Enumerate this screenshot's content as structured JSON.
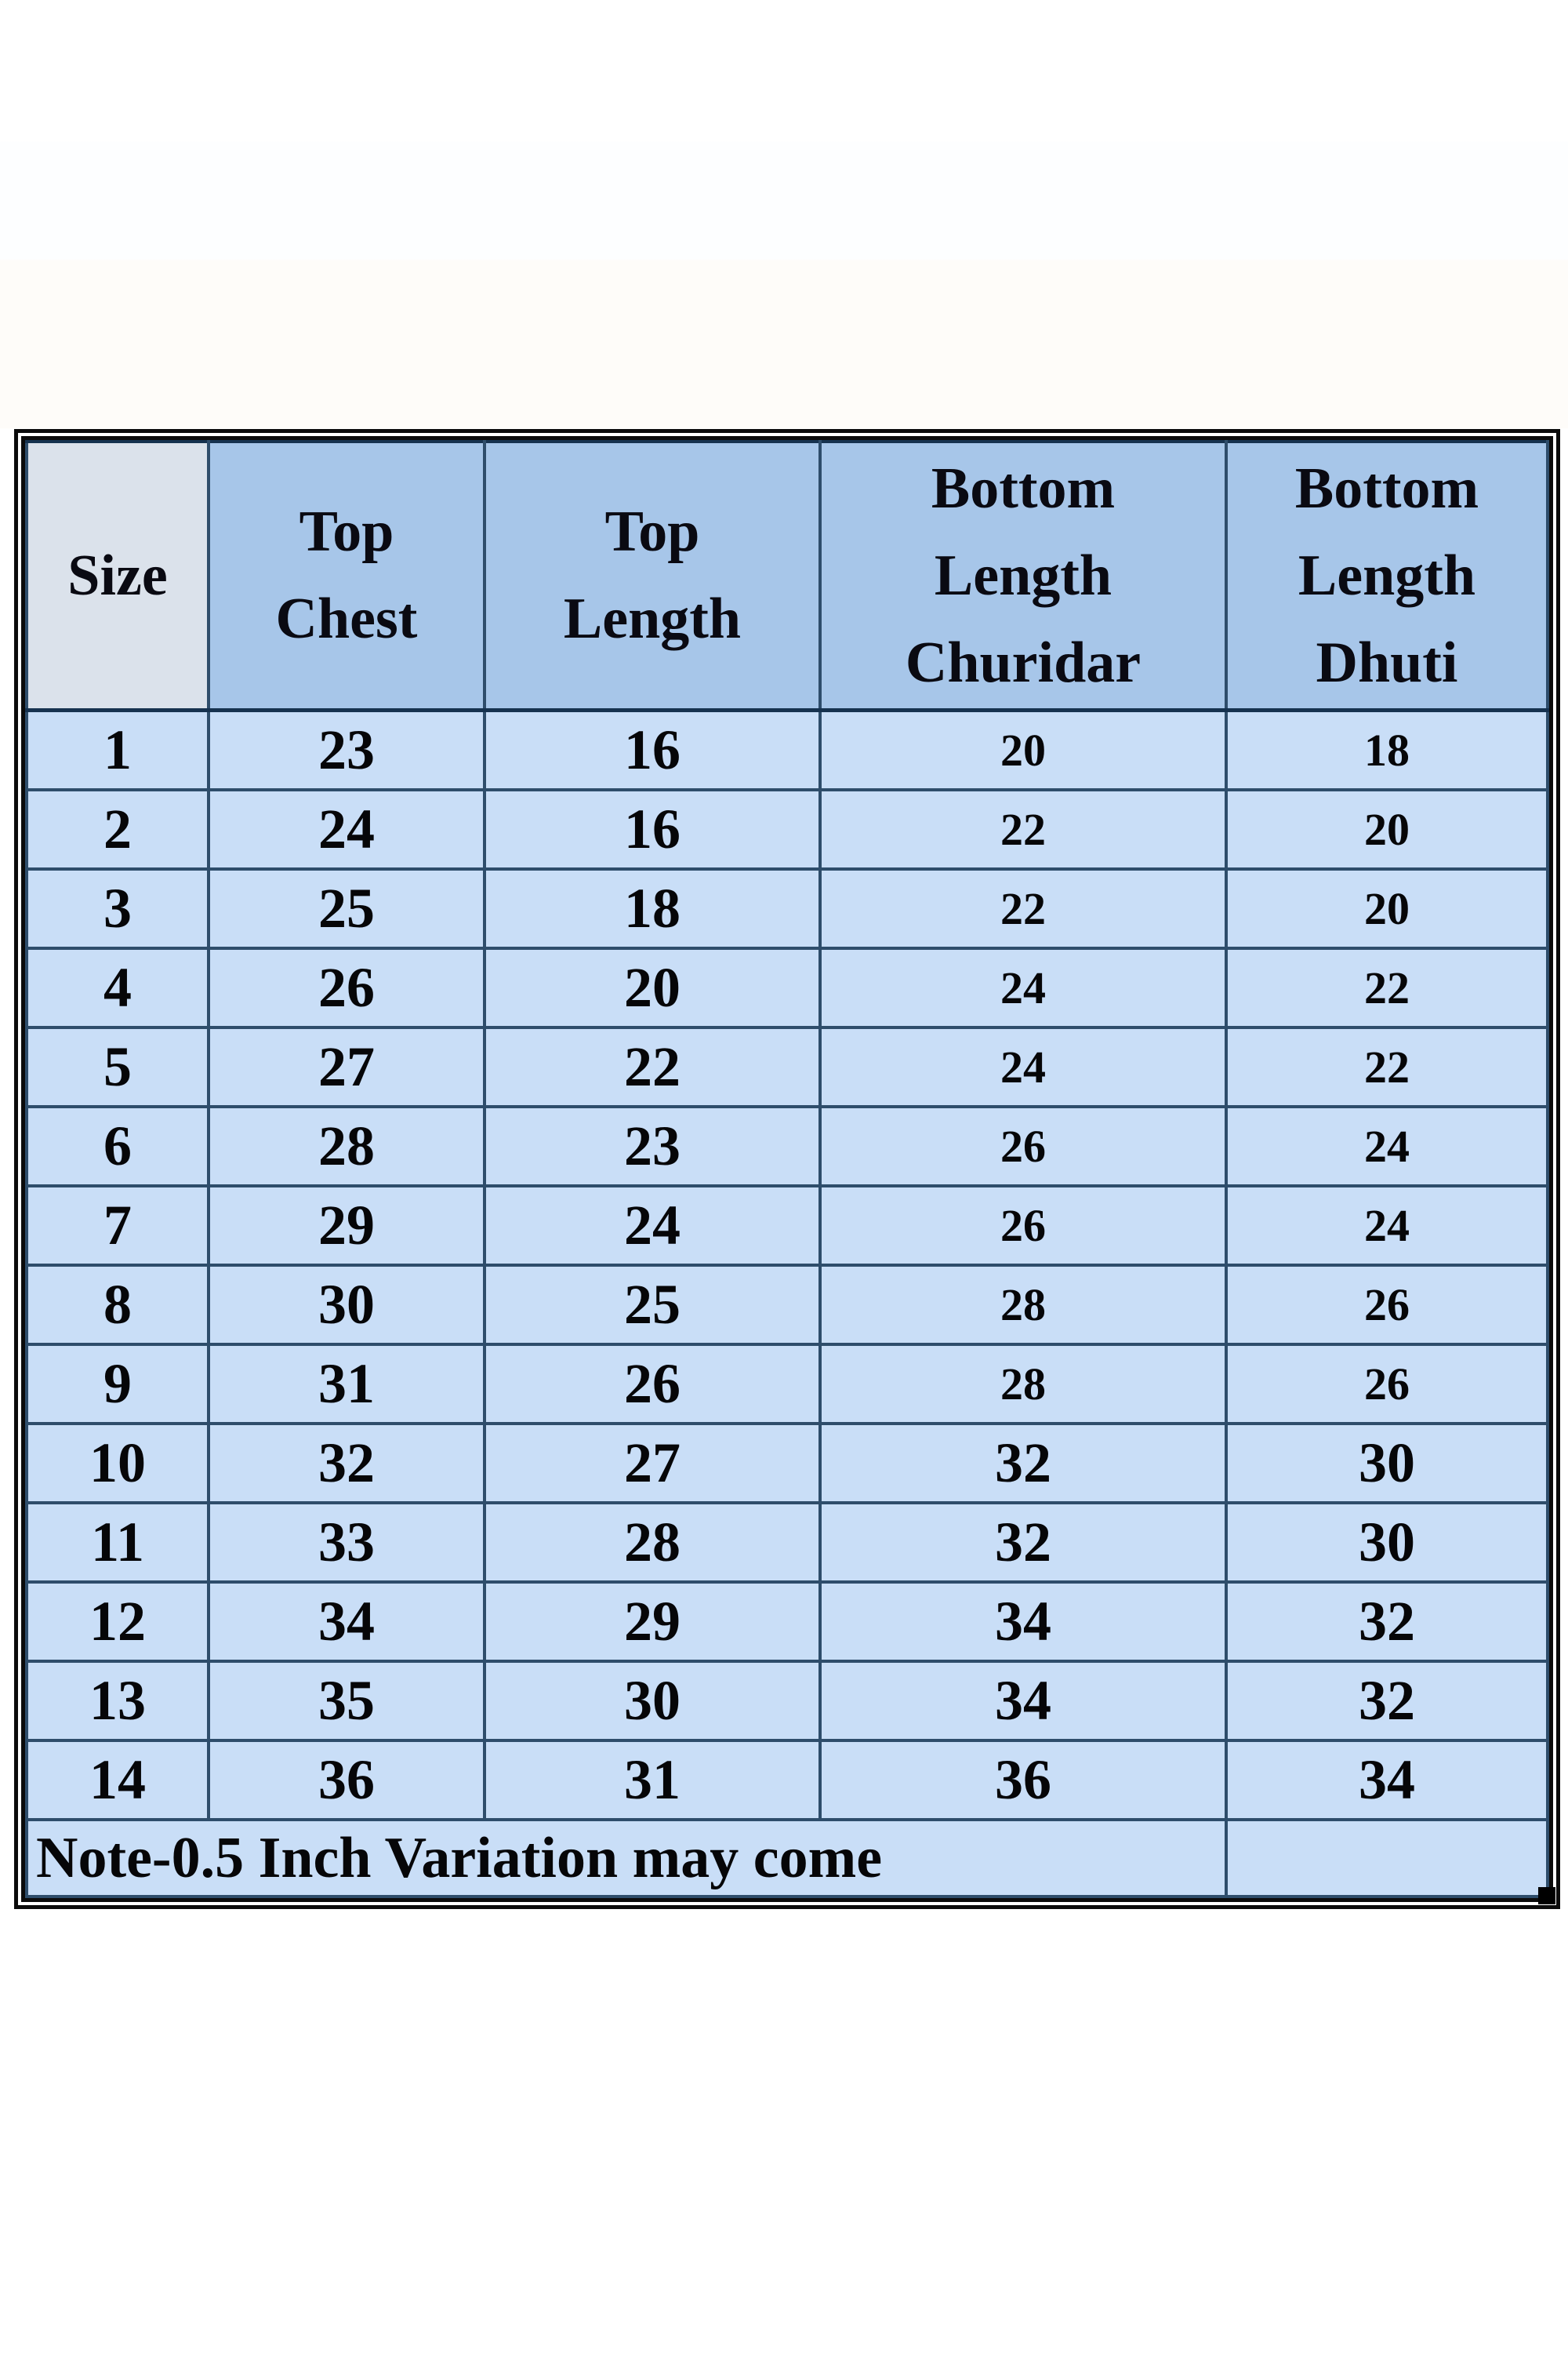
{
  "table": {
    "columns": [
      "Size",
      "Top\nChest",
      "Top\nLength",
      "Bottom\nLength\nChuridar",
      "Bottom\nLength\nDhuti"
    ],
    "rows": [
      [
        "1",
        "23",
        "16",
        "20",
        "18"
      ],
      [
        "2",
        "24",
        "16",
        "22",
        "20"
      ],
      [
        "3",
        "25",
        "18",
        "22",
        "20"
      ],
      [
        "4",
        "26",
        "20",
        "24",
        "22"
      ],
      [
        "5",
        "27",
        "22",
        "24",
        "22"
      ],
      [
        "6",
        "28",
        "23",
        "26",
        "24"
      ],
      [
        "7",
        "29",
        "24",
        "26",
        "24"
      ],
      [
        "8",
        "30",
        "25",
        "28",
        "26"
      ],
      [
        "9",
        "31",
        "26",
        "28",
        "26"
      ],
      [
        "10",
        "32",
        "27",
        "32",
        "30"
      ],
      [
        "11",
        "33",
        "28",
        "32",
        "30"
      ],
      [
        "12",
        "34",
        "29",
        "34",
        "32"
      ],
      [
        "13",
        "35",
        "30",
        "34",
        "32"
      ],
      [
        "14",
        "36",
        "31",
        "36",
        "34"
      ]
    ],
    "note": "Note-0.5 Inch Variation may come"
  },
  "colors": {
    "header_bg": "#a7c6e9",
    "size_header_bg": "#dbe2eb",
    "cell_bg": "#c9def7",
    "grid": "#2e4d6b",
    "outer_border": "#0b0b0b"
  }
}
